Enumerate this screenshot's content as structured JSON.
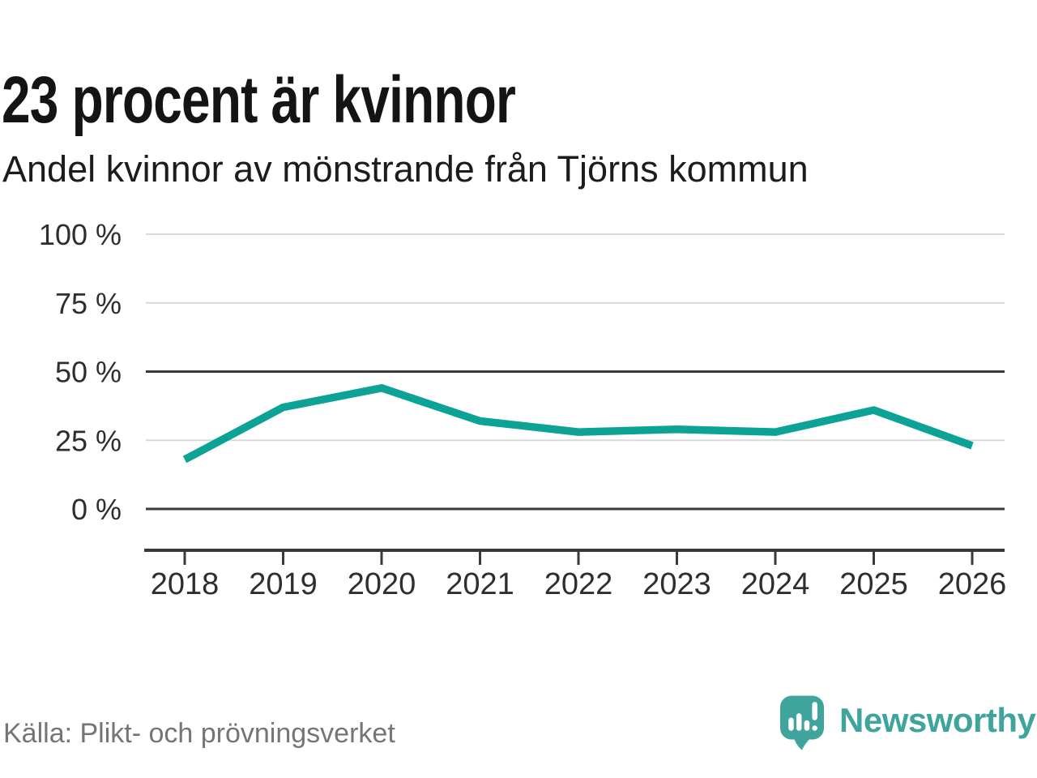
{
  "header": {
    "title": "23 procent är kvinnor",
    "subtitle": "Andel kvinnor av mönstrande från Tjörns kommun"
  },
  "footer": {
    "source": "Källa: Plikt- och prövningsverket",
    "brand": "Newsworthy"
  },
  "colors": {
    "accent_teal": "#0ca296",
    "logo_teal": "#3fa59c",
    "grid_light": "#d9d9d9",
    "grid_dark": "#3a3a3a",
    "axis_text": "#2e2e2e",
    "source_text": "#757575"
  },
  "chart_data": {
    "type": "line",
    "title": "23 procent är kvinnor",
    "subtitle": "Andel kvinnor av mönstrande från Tjörns kommun",
    "categories": [
      "2018",
      "2019",
      "2020",
      "2021",
      "2022",
      "2023",
      "2024",
      "2025",
      "2026"
    ],
    "series": [
      {
        "name": "Andel kvinnor av mönstrande (%)",
        "values": [
          18,
          37,
          44,
          32,
          28,
          29,
          28,
          36,
          23
        ],
        "color": "#0ca296"
      }
    ],
    "unit": "%",
    "xlabel": "",
    "ylabel": "",
    "ylim": [
      0,
      100
    ],
    "ytick_values": [
      100,
      75,
      50,
      25,
      0
    ],
    "ytick_labels": [
      "100 %",
      "75 %",
      "50 %",
      "25 %",
      "0 %"
    ],
    "dark_gridlines": [
      50,
      0
    ],
    "grid": true,
    "legend": "none"
  }
}
